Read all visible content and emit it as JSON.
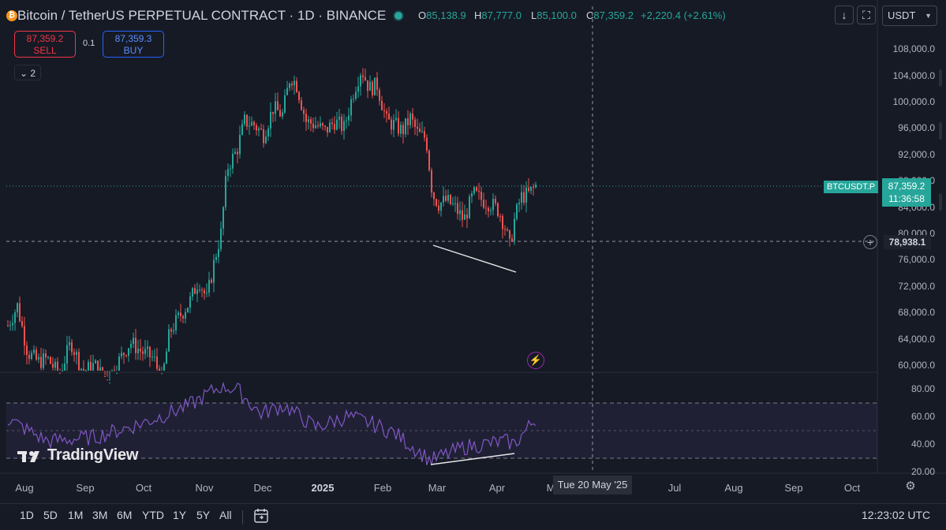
{
  "header": {
    "symbol_icon": "₿",
    "title": "Bitcoin / TetherUS PERPETUAL CONTRACT · 1D · BINANCE",
    "ohlc": [
      {
        "label": "O",
        "value": "85,138.9"
      },
      {
        "label": "H",
        "value": "87,777.0"
      },
      {
        "label": "L",
        "value": "85,100.0"
      },
      {
        "label": "C",
        "value": "87,359.2"
      }
    ],
    "change": "+2,220.4 (+2.61%)",
    "unit_select": "USDT",
    "icons": {
      "download": "arrow-down-icon",
      "fullscreen": "fullscreen-icon"
    }
  },
  "trade": {
    "sell_price": "87,359.2",
    "sell_label": "SELL",
    "spread": "0.1",
    "buy_price": "87,359.3",
    "buy_label": "BUY",
    "indicators_toggle": "2"
  },
  "price_axis": {
    "ticks": [
      "108,000.0",
      "104,000.0",
      "100,000.0",
      "96,000.0",
      "92,000.0",
      "88,000.0",
      "84,000.0",
      "80,000.0",
      "76,000.0",
      "72,000.0",
      "68,000.0",
      "64,000.0",
      "60,000.0"
    ],
    "last_price": "87,359.2",
    "countdown": "11:36:58",
    "symbol_tag": "BTCUSDT.P",
    "crosshair_price": "78,938.1"
  },
  "rsi_axis": {
    "ticks": [
      "80.00",
      "60.00",
      "40.00",
      "20.00"
    ],
    "upper_band": 70,
    "lower_band": 30,
    "mid_band": 50
  },
  "time_axis": {
    "ticks": [
      {
        "label": "Aug",
        "bold": false
      },
      {
        "label": "Sep",
        "bold": false
      },
      {
        "label": "Oct",
        "bold": false
      },
      {
        "label": "Nov",
        "bold": false
      },
      {
        "label": "Dec",
        "bold": false
      },
      {
        "label": "2025",
        "bold": true
      },
      {
        "label": "Feb",
        "bold": false
      },
      {
        "label": "Mar",
        "bold": false
      },
      {
        "label": "Apr",
        "bold": false
      },
      {
        "label": "M",
        "bold": false
      },
      {
        "label": "Jul",
        "bold": false
      },
      {
        "label": "Aug",
        "bold": false
      },
      {
        "label": "Sep",
        "bold": false
      },
      {
        "label": "Oct",
        "bold": false
      }
    ],
    "crosshair_date": "Tue 20 May '25"
  },
  "bottom": {
    "ranges": [
      "1D",
      "5D",
      "1M",
      "3M",
      "6M",
      "YTD",
      "1Y",
      "5Y",
      "All"
    ],
    "clock": "12:23:02 UTC"
  },
  "watermark": "TradingView",
  "colors": {
    "bg": "#161a25",
    "up": "#26a69a",
    "down": "#ef5350",
    "rsi": "#7e57c2",
    "crosshair": "#9598a1"
  }
}
